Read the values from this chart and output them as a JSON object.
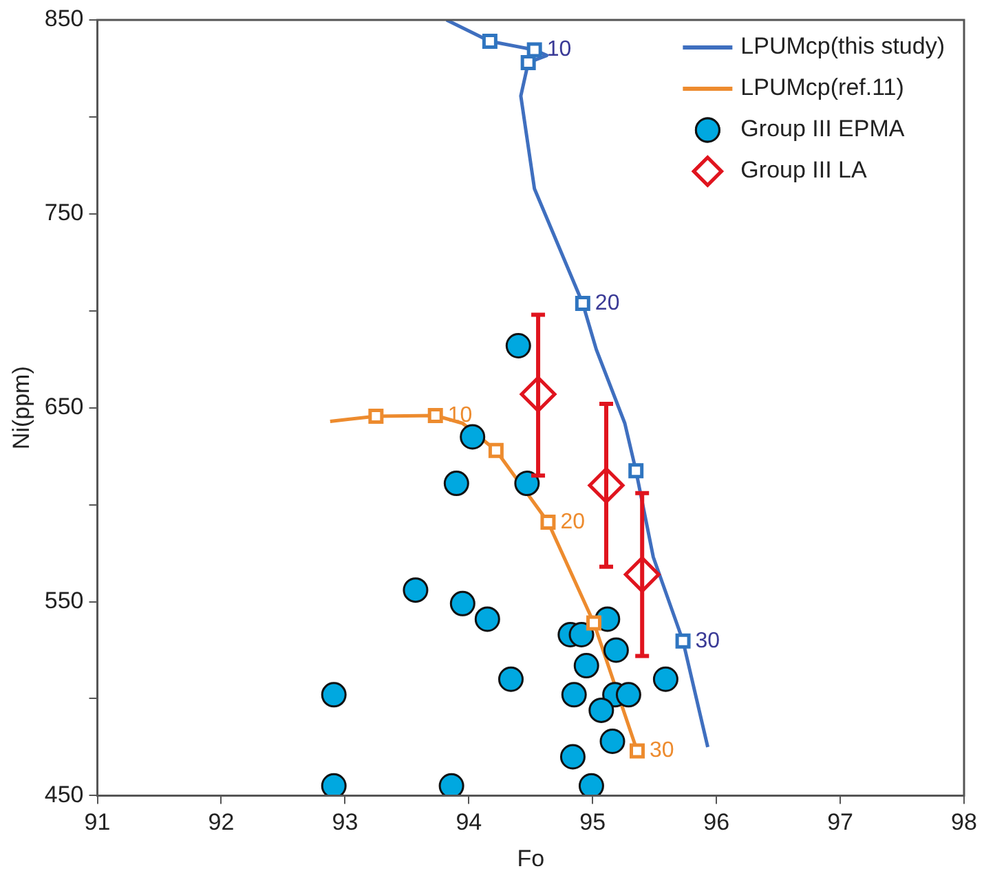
{
  "chart_data": {
    "type": "scatter",
    "xlabel": "Fo",
    "ylabel": "Ni(ppm)",
    "xlim": [
      91,
      98
    ],
    "xticks": [
      91,
      92,
      93,
      94,
      95,
      96,
      97,
      98
    ],
    "ylim": [
      450,
      850
    ],
    "yticks": [
      450,
      {
        "value": 500,
        "label": null
      },
      550,
      {
        "value": 600,
        "label": null
      },
      650,
      {
        "value": 700,
        "label": null
      },
      750,
      {
        "value": 800,
        "label": null
      },
      850
    ],
    "grid": false,
    "legend": "top right",
    "series": [
      {
        "name": "LPUMcp(this study)",
        "type": "line",
        "color": "#3f6fbf",
        "marker": "none",
        "line_style": "solid",
        "x": [
          93.82,
          94.17,
          94.53,
          94.63,
          94.48,
          94.42,
          94.53,
          94.92,
          95.03,
          95.26,
          95.35,
          95.49,
          95.73,
          95.93
        ],
        "values": [
          850,
          839,
          834.6,
          831.7,
          828,
          810.8,
          763,
          703.8,
          680,
          642,
          617.5,
          573,
          529.7,
          475
        ]
      },
      {
        "name": "LPUMcp(ref.11)",
        "type": "line",
        "color": "#ed8b2e",
        "marker": "none",
        "line_style": "solid",
        "x": [
          92.88,
          93.25,
          93.73,
          93.95,
          94.22,
          94.64,
          95.01,
          95.36
        ],
        "values": [
          643,
          645.6,
          646,
          642,
          628,
          591,
          539,
          473
        ]
      },
      {
        "name": "Group III EPMA",
        "color": "#00a8e0",
        "marker": "circle",
        "x": [
          94.4,
          94.03,
          93.9,
          94.47,
          93.57,
          93.95,
          94.15,
          95.12,
          94.82,
          94.91,
          95.19,
          94.95,
          94.34,
          95.59,
          92.91,
          94.85,
          95.18,
          95.29,
          95.07,
          95.16,
          94.84,
          92.91,
          93.86,
          94.99
        ],
        "values": [
          682,
          635,
          611,
          611,
          556,
          549,
          541,
          541,
          533,
          533,
          525,
          517,
          510,
          510,
          502,
          502,
          502,
          502,
          494,
          478,
          470,
          455,
          455,
          455
        ]
      },
      {
        "name": "Group III LA",
        "color": "#e0141e",
        "marker": "diamond",
        "x": [
          94.56,
          95.11,
          95.4
        ],
        "values": [
          657,
          610,
          564
        ],
        "errors": [
          [
            615,
            698
          ],
          [
            568,
            652
          ],
          [
            522,
            606
          ]
        ]
      },
      {
        "color": "#2f75c0",
        "marker": "square",
        "x": [
          94.17,
          94.53,
          94.48,
          94.92,
          95.35,
          95.73
        ],
        "values": [
          839,
          834.6,
          828,
          703.8,
          617.5,
          529.7
        ]
      },
      {
        "color": "#ed8b2e",
        "marker": "square",
        "x": [
          93.25,
          93.73,
          94.22,
          94.64,
          95.01,
          95.36
        ],
        "values": [
          645.6,
          646,
          628,
          591,
          539,
          473
        ]
      }
    ],
    "annotations": [
      {
        "text": "10",
        "x": 94.53,
        "y": 834.6
      },
      {
        "text": "20",
        "x": 94.92,
        "y": 703.8
      },
      {
        "text": "30",
        "x": 95.73,
        "y": 529.7
      },
      {
        "text": "10",
        "x": 93.73,
        "y": 646
      },
      {
        "text": "20",
        "x": 94.64,
        "y": 591
      },
      {
        "text": "30",
        "x": 95.36,
        "y": 473
      }
    ]
  }
}
